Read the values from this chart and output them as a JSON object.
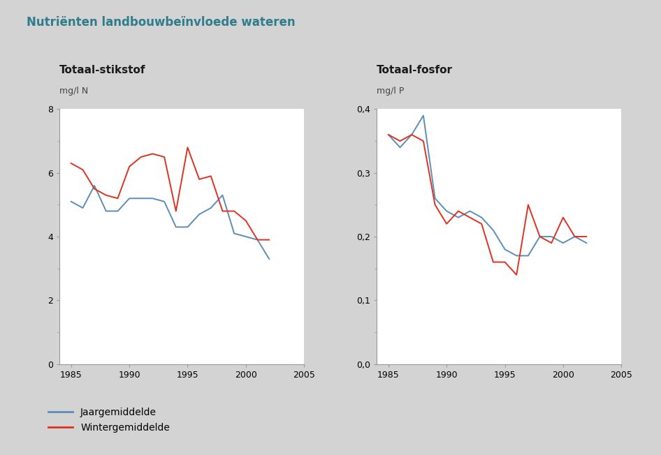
{
  "title": "Nutriënten landbouwbeïnvloede wateren",
  "subtitle_left": "Totaal-stikstof",
  "subtitle_right": "Totaal-fosfor",
  "ylabel_left": "mg/l N",
  "ylabel_right": "mg/l P",
  "background_color": "#d3d3d3",
  "plot_bg": "#ffffff",
  "title_color": "#2e7d8c",
  "subtitle_color": "#1a1a1a",
  "line_blue": "#5b8db8",
  "line_red": "#e03020",
  "legend_blue": "Jaargemiddelde",
  "legend_red": "Wintergemiddelde",
  "left_years": [
    1985,
    1986,
    1987,
    1988,
    1989,
    1990,
    1991,
    1992,
    1993,
    1994,
    1995,
    1996,
    1997,
    1998,
    1999,
    2000,
    2001,
    2002
  ],
  "left_blue": [
    5.1,
    4.9,
    5.6,
    4.8,
    4.8,
    5.2,
    5.2,
    5.2,
    5.1,
    4.3,
    4.3,
    4.7,
    4.9,
    5.3,
    4.1,
    4.0,
    3.9,
    3.3
  ],
  "left_red": [
    6.3,
    6.1,
    5.5,
    5.3,
    5.2,
    6.2,
    6.5,
    6.6,
    6.5,
    4.8,
    6.8,
    5.8,
    5.9,
    4.8,
    4.8,
    4.5,
    3.9,
    3.9
  ],
  "right_years": [
    1985,
    1986,
    1987,
    1988,
    1989,
    1990,
    1991,
    1992,
    1993,
    1994,
    1995,
    1996,
    1997,
    1998,
    1999,
    2000,
    2001,
    2002
  ],
  "right_blue": [
    0.36,
    0.34,
    0.36,
    0.39,
    0.26,
    0.24,
    0.23,
    0.24,
    0.23,
    0.21,
    0.18,
    0.17,
    0.17,
    0.2,
    0.2,
    0.19,
    0.2,
    0.19
  ],
  "right_red": [
    0.36,
    0.35,
    0.36,
    0.35,
    0.25,
    0.22,
    0.24,
    0.23,
    0.22,
    0.16,
    0.16,
    0.14,
    0.25,
    0.2,
    0.19,
    0.23,
    0.2,
    0.2
  ],
  "left_xlim": [
    1984,
    2005
  ],
  "left_ylim": [
    0,
    8
  ],
  "left_yticks": [
    0,
    2,
    4,
    6,
    8
  ],
  "right_xlim": [
    1984,
    2005
  ],
  "right_ylim": [
    0.0,
    0.4
  ],
  "right_yticks": [
    0.0,
    0.1,
    0.2,
    0.3,
    0.4
  ],
  "xticks": [
    1985,
    1990,
    1995,
    2000,
    2005
  ]
}
